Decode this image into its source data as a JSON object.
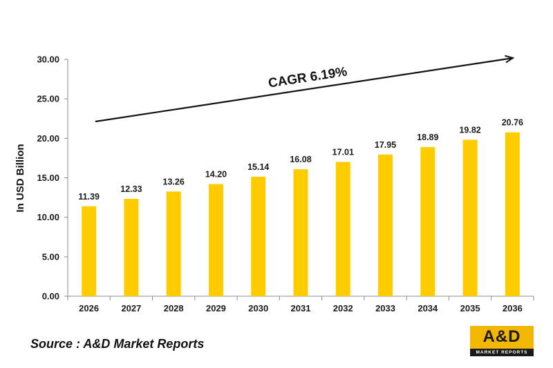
{
  "chart_data": {
    "type": "bar",
    "categories": [
      "2026",
      "2027",
      "2028",
      "2029",
      "2030",
      "2031",
      "2032",
      "2033",
      "2034",
      "2035",
      "2036"
    ],
    "values": [
      11.39,
      12.33,
      13.26,
      14.2,
      15.14,
      16.08,
      17.01,
      17.95,
      18.89,
      19.82,
      20.76
    ],
    "data_labels": [
      "11.39",
      "12.33",
      "13.26",
      "14.20",
      "15.14",
      "16.08",
      "17.01",
      "17.95",
      "18.89",
      "19.82",
      "20.76"
    ],
    "ylabel": "In USD Billion",
    "ylim": [
      0,
      30
    ],
    "yticks": [
      0,
      5,
      10,
      15,
      20,
      25,
      30
    ],
    "ytick_labels": [
      "0.00",
      "5.00",
      "10.00",
      "15.00",
      "20.00",
      "25.00",
      "30.00"
    ],
    "annotation": "CAGR 6.19%",
    "grid": false,
    "bar_color": "#ffcc00"
  },
  "source_text": "Source : A&D Market Reports",
  "logo": {
    "main": "A&D",
    "sub": "MARKET REPORTS",
    "color": "#f2b705"
  }
}
